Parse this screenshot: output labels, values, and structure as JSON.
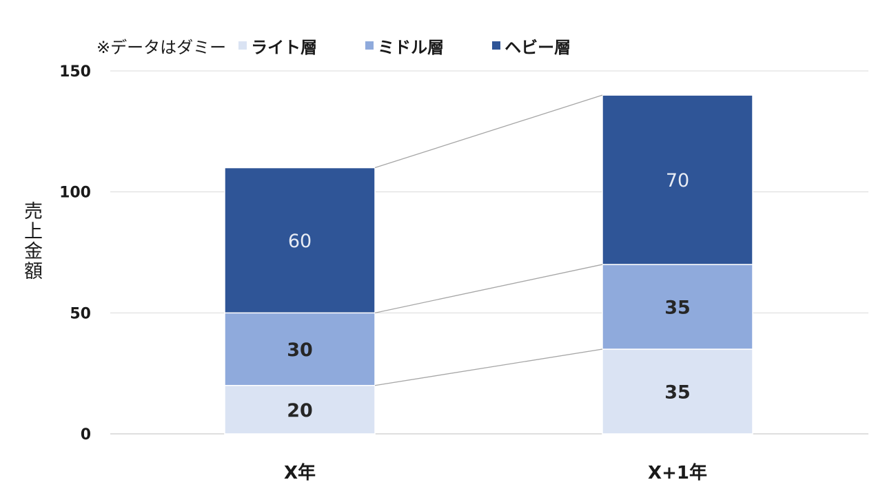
{
  "chart_data": {
    "type": "bar",
    "stacked": true,
    "title": "",
    "note": "※データはダミー",
    "xlabel": "",
    "ylabel": "売上金額",
    "categories": [
      "X年",
      "X+1年"
    ],
    "ylim": [
      0,
      150
    ],
    "yticks": [
      0,
      50,
      100,
      150
    ],
    "ytick_labels": [
      "0",
      "50",
      "100",
      "150"
    ],
    "grid": true,
    "legend_position": "top",
    "series_connector_lines": true,
    "series": [
      {
        "name": "ライト層",
        "values": [
          20,
          35
        ],
        "color": "#dae3f3",
        "label_color": "#262626"
      },
      {
        "name": "ミドル層",
        "values": [
          30,
          35
        ],
        "color": "#8faadc",
        "label_color": "#262626"
      },
      {
        "name": "ヘビー層",
        "values": [
          60,
          70
        ],
        "color": "#2f5597",
        "label_color": "#e8ecf4"
      }
    ]
  }
}
